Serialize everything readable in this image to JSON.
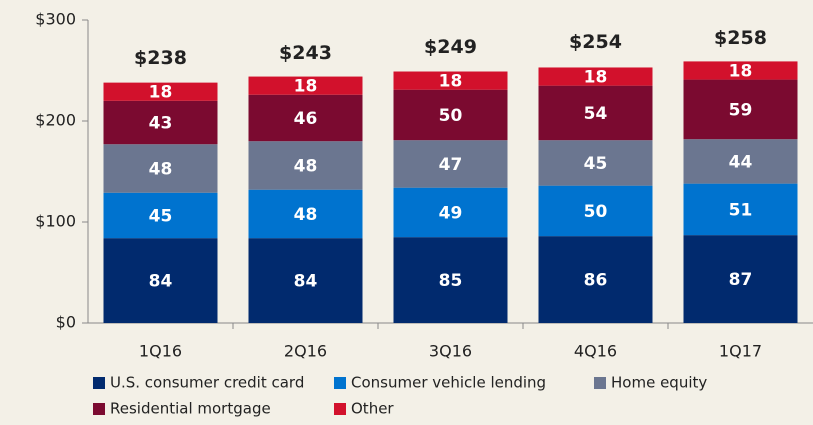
{
  "chart_data": {
    "type": "stacked_bar",
    "categories": [
      "1Q16",
      "2Q16",
      "3Q16",
      "4Q16",
      "1Q17"
    ],
    "series": [
      {
        "name": "U.S. consumer credit card",
        "color": "#012a6e",
        "values": [
          84,
          84,
          85,
          86,
          87
        ]
      },
      {
        "name": "Consumer vehicle lending",
        "color": "#0073cf",
        "values": [
          45,
          48,
          49,
          50,
          51
        ]
      },
      {
        "name": "Home equity",
        "color": "#6b7690",
        "values": [
          48,
          48,
          47,
          45,
          44
        ]
      },
      {
        "name": "Residential mortgage",
        "color": "#7b0a30",
        "values": [
          43,
          46,
          50,
          54,
          59
        ]
      },
      {
        "name": "Other",
        "color": "#d2112c",
        "values": [
          18,
          18,
          18,
          18,
          18
        ]
      }
    ],
    "totals": [
      238,
      243,
      249,
      254,
      258
    ],
    "totals_value_labels": [
      "$238",
      "$243",
      "$249",
      "$254",
      "$258"
    ],
    "ylim": [
      0,
      300
    ],
    "yticks": [
      {
        "value": 0,
        "label": "$0"
      },
      {
        "value": 100,
        "label": "$100"
      },
      {
        "value": 200,
        "label": "$200"
      },
      {
        "value": 300,
        "label": "$300"
      }
    ]
  }
}
